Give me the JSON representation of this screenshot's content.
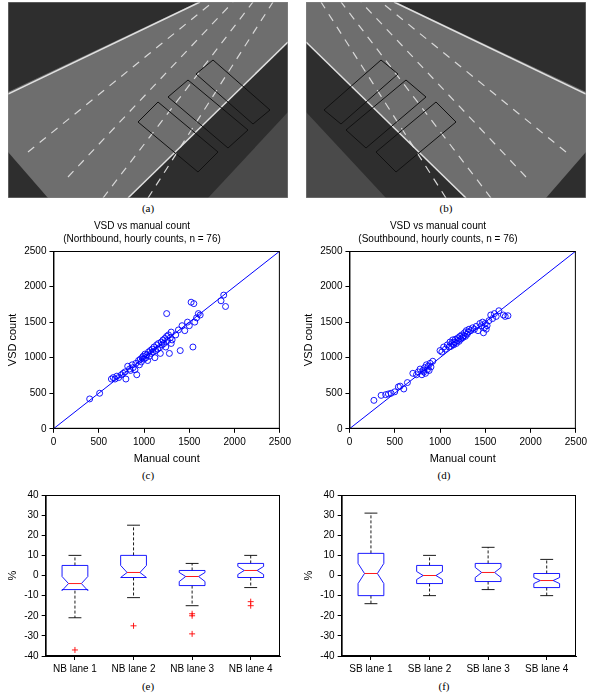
{
  "images": [
    {
      "label": "(a)"
    },
    {
      "label": "(b)"
    }
  ],
  "chart_data": [
    {
      "type": "scatter",
      "label": "(c)",
      "title": "VSD vs manual count",
      "subtitle": "(Northbound, hourly counts, n = 76)",
      "x_label": "Manual count",
      "y_label": "VSD count",
      "color": "#0000ff",
      "marker": "circle",
      "grid": false,
      "xlim": [
        0,
        2500
      ],
      "ylim": [
        0,
        2500
      ],
      "xticks": [
        0,
        500,
        1000,
        1500,
        2000,
        2500
      ],
      "yticks": [
        0,
        500,
        1000,
        1500,
        2000,
        2500
      ],
      "reference_line": {
        "x": [
          0,
          2500
        ],
        "y": [
          0,
          2500
        ],
        "line_style": "solid"
      },
      "x": [
        400,
        510,
        640,
        660,
        680,
        700,
        720,
        750,
        770,
        790,
        800,
        820,
        840,
        850,
        870,
        880,
        900,
        910,
        920,
        940,
        950,
        960,
        970,
        980,
        990,
        1000,
        1010,
        1020,
        1030,
        1040,
        1050,
        1060,
        1070,
        1080,
        1090,
        1100,
        1110,
        1120,
        1130,
        1140,
        1150,
        1160,
        1170,
        1180,
        1190,
        1200,
        1210,
        1220,
        1230,
        1240,
        1250,
        1260,
        1270,
        1280,
        1290,
        1300,
        1310,
        1250,
        1350,
        1380,
        1400,
        1420,
        1450,
        1480,
        1500,
        1520,
        1540,
        1550,
        1560,
        1580,
        1600,
        1620,
        1850,
        1880,
        1900,
        1300
      ],
      "values": [
        420,
        500,
        700,
        720,
        700,
        740,
        720,
        760,
        780,
        800,
        700,
        880,
        840,
        820,
        900,
        860,
        830,
        920,
        760,
        960,
        900,
        980,
        940,
        1000,
        1020,
        980,
        1050,
        1000,
        1040,
        960,
        1080,
        1020,
        1100,
        1060,
        1120,
        1080,
        1150,
        1000,
        1100,
        1180,
        1120,
        1200,
        1140,
        1060,
        1220,
        1180,
        1250,
        1200,
        1270,
        1150,
        1300,
        1240,
        1320,
        1060,
        1280,
        1360,
        1250,
        1620,
        1320,
        1390,
        1100,
        1450,
        1380,
        1500,
        1450,
        1780,
        1150,
        1760,
        1500,
        1560,
        1620,
        1600,
        1800,
        1880,
        1720,
        1200
      ]
    },
    {
      "type": "scatter",
      "label": "(d)",
      "title": "VSD vs manual count",
      "subtitle": "(Southbound, hourly counts, n = 76)",
      "x_label": "Manual count",
      "y_label": "VSD count",
      "color": "#0000ff",
      "marker": "circle",
      "grid": false,
      "xlim": [
        0,
        2500
      ],
      "ylim": [
        0,
        2500
      ],
      "xticks": [
        0,
        500,
        1000,
        1500,
        2000,
        2500
      ],
      "yticks": [
        0,
        500,
        1000,
        1500,
        2000,
        2500
      ],
      "reference_line": {
        "x": [
          0,
          2500
        ],
        "y": [
          0,
          2500
        ],
        "line_style": "solid"
      },
      "x": [
        270,
        350,
        400,
        430,
        460,
        500,
        540,
        560,
        600,
        640,
        700,
        740,
        760,
        780,
        800,
        810,
        820,
        830,
        840,
        850,
        860,
        870,
        880,
        890,
        900,
        920,
        1000,
        1020,
        1040,
        1060,
        1080,
        1100,
        1110,
        1120,
        1130,
        1140,
        1150,
        1160,
        1170,
        1180,
        1190,
        1200,
        1210,
        1220,
        1230,
        1240,
        1250,
        1260,
        1270,
        1280,
        1290,
        1300,
        1310,
        1320,
        1340,
        1360,
        1380,
        1400,
        1420,
        1440,
        1460,
        1470,
        1480,
        1490,
        1500,
        1510,
        1520,
        1540,
        1560,
        1580,
        1600,
        1620,
        1650,
        1700,
        1720,
        1750
      ],
      "values": [
        400,
        470,
        480,
        490,
        500,
        520,
        590,
        600,
        560,
        650,
        780,
        760,
        800,
        840,
        760,
        820,
        800,
        860,
        780,
        900,
        830,
        880,
        820,
        920,
        870,
        950,
        1100,
        1080,
        1150,
        1120,
        1180,
        1150,
        1220,
        1160,
        1200,
        1250,
        1180,
        1220,
        1260,
        1200,
        1240,
        1280,
        1230,
        1300,
        1260,
        1320,
        1280,
        1300,
        1350,
        1300,
        1380,
        1330,
        1360,
        1400,
        1380,
        1420,
        1400,
        1440,
        1380,
        1480,
        1450,
        1500,
        1350,
        1420,
        1480,
        1400,
        1450,
        1520,
        1600,
        1550,
        1620,
        1580,
        1660,
        1600,
        1580,
        1590
      ]
    },
    {
      "type": "boxplot",
      "label": "(e)",
      "y_label": "%",
      "color": "#0000ff",
      "grid": false,
      "ylim": [
        -40,
        40
      ],
      "yticks": [
        -40,
        -30,
        -20,
        -10,
        0,
        10,
        20,
        30,
        40
      ],
      "categories": [
        "NB lane 1",
        "NB lane 2",
        "NB lane 3",
        "NB lane 4"
      ],
      "boxes": [
        {
          "whisker_low": -21,
          "q1": -7,
          "median": -4,
          "q3": 5,
          "whisker_high": 10,
          "notch": [
            -7.5,
            -0.5
          ],
          "outliers": [
            -37
          ]
        },
        {
          "whisker_low": -11,
          "q1": -1,
          "median": 1.5,
          "q3": 10,
          "whisker_high": 25,
          "notch": [
            -1,
            5
          ],
          "outliers": [
            -25
          ]
        },
        {
          "whisker_low": -15,
          "q1": -5,
          "median": -0.5,
          "q3": 2.5,
          "whisker_high": 6,
          "notch": [
            -3,
            1.5
          ],
          "outliers": [
            -19,
            -20,
            -29
          ]
        },
        {
          "whisker_low": -6,
          "q1": -1,
          "median": 2.5,
          "q3": 6,
          "whisker_high": 10,
          "notch": [
            0.5,
            4.5
          ],
          "outliers": [
            -13,
            -15
          ]
        }
      ]
    },
    {
      "type": "boxplot",
      "label": "(f)",
      "y_label": "%",
      "color": "#0000ff",
      "grid": false,
      "ylim": [
        -40,
        40
      ],
      "yticks": [
        -40,
        -30,
        -20,
        -10,
        0,
        10,
        20,
        30,
        40
      ],
      "categories": [
        "SB lane 1",
        "SB lane 2",
        "SB lane 3",
        "SB lane 4"
      ],
      "boxes": [
        {
          "whisker_low": -14,
          "q1": -10,
          "median": 1,
          "q3": 11,
          "whisker_high": 31,
          "notch": [
            -4,
            6
          ],
          "outliers": []
        },
        {
          "whisker_low": -10,
          "q1": -4,
          "median": 0,
          "q3": 5,
          "whisker_high": 10,
          "notch": [
            -2,
            2
          ],
          "outliers": []
        },
        {
          "whisker_low": -7,
          "q1": -3,
          "median": 1.5,
          "q3": 6,
          "whisker_high": 14,
          "notch": [
            -1,
            4
          ],
          "outliers": []
        },
        {
          "whisker_low": -10,
          "q1": -6,
          "median": -2.5,
          "q3": 1,
          "whisker_high": 8,
          "notch": [
            -4,
            -1
          ],
          "outliers": []
        }
      ]
    }
  ]
}
